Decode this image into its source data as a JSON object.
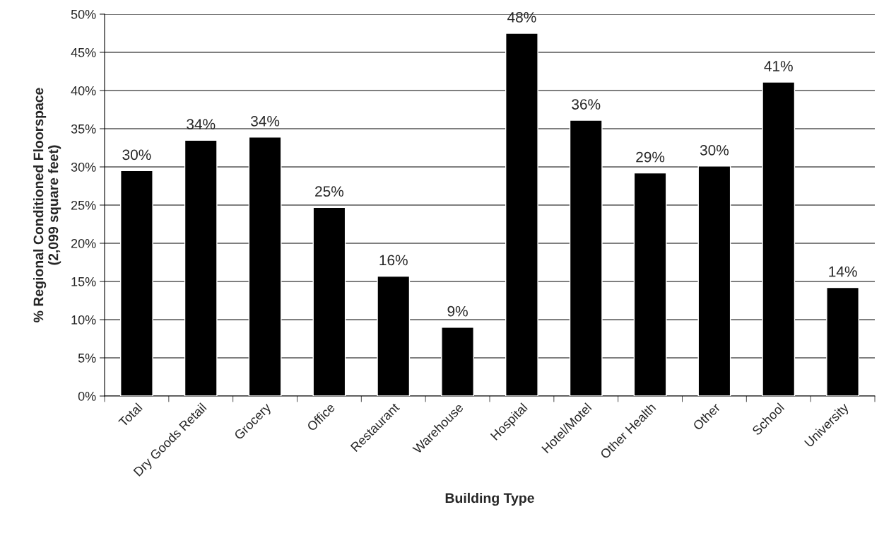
{
  "chart_data": {
    "type": "bar",
    "xlabel": "Building Type",
    "ylabel": "% Regional Conditioned Floorspace\n(2,099 square feet)",
    "categories": [
      "Total",
      "Dry Goods Retail",
      "Grocery",
      "Office",
      "Restaurant",
      "Warehouse",
      "Hospital",
      "Hotel/Motel",
      "Other Health",
      "Other",
      "School",
      "University"
    ],
    "values": [
      29.5,
      33.5,
      33.9,
      24.7,
      15.7,
      9.0,
      47.5,
      36.1,
      29.2,
      30.1,
      41.1,
      14.2
    ],
    "value_labels": [
      "30%",
      "34%",
      "34%",
      "25%",
      "16%",
      "9%",
      "48%",
      "36%",
      "29%",
      "30%",
      "41%",
      "14%"
    ],
    "color": "#000000",
    "ylim": [
      0,
      50
    ],
    "yticks": [
      {
        "value": 0,
        "label": "0%"
      },
      {
        "value": 5,
        "label": "5%"
      },
      {
        "value": 10,
        "label": "10%"
      },
      {
        "value": 15,
        "label": "15%"
      },
      {
        "value": 20,
        "label": "20%"
      },
      {
        "value": 25,
        "label": "25%"
      },
      {
        "value": 30,
        "label": "30%"
      },
      {
        "value": 35,
        "label": "35%"
      },
      {
        "value": 40,
        "label": "40%"
      },
      {
        "value": 45,
        "label": "45%"
      },
      {
        "value": 50,
        "label": "50%"
      }
    ],
    "grid": "y",
    "legend": false
  }
}
